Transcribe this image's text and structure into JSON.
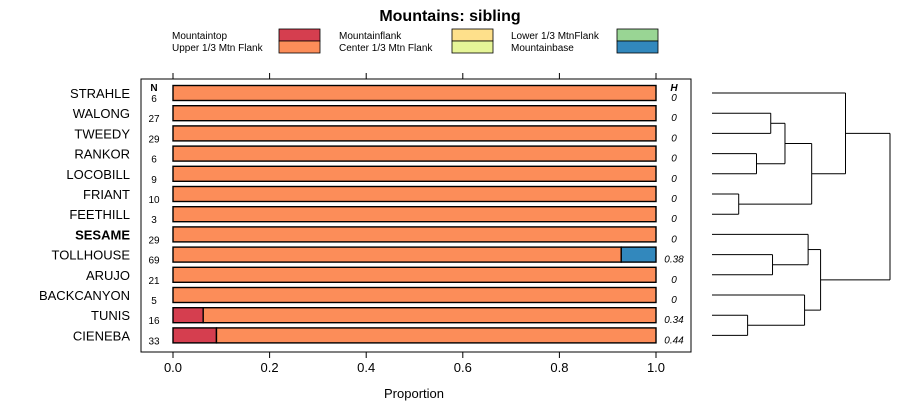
{
  "chart_data": {
    "type": "bar",
    "orientation": "horizontal",
    "stacked": true,
    "title": "Mountains: sibling",
    "xlabel": "Proportion",
    "ylabel": "",
    "xlim": [
      0,
      1
    ],
    "xticks": [
      "0.0",
      "0.2",
      "0.4",
      "0.6",
      "0.8",
      "1.0"
    ],
    "n_header": "N",
    "h_header": "H",
    "highlight_category": "SESAME",
    "legend": [
      {
        "name": "Mountaintop",
        "color": "#d53e4f"
      },
      {
        "name": "Mountainflank",
        "color": "#fee08b"
      },
      {
        "name": "Lower 1/3 MtnFlank",
        "color": "#99d594"
      },
      {
        "name": "Upper 1/3 Mtn Flank",
        "color": "#fc8d59"
      },
      {
        "name": "Center 1/3 Mtn Flank",
        "color": "#e6f598"
      },
      {
        "name": "Mountainbase",
        "color": "#3288bd"
      }
    ],
    "rows": [
      {
        "name": "STRAHLE",
        "n": "6",
        "h": "0",
        "parts": [
          0,
          0,
          0,
          1,
          0,
          0
        ]
      },
      {
        "name": "WALONG",
        "n": "27",
        "h": "0",
        "parts": [
          0,
          0,
          0,
          1,
          0,
          0
        ]
      },
      {
        "name": "TWEEDY",
        "n": "29",
        "h": "0",
        "parts": [
          0,
          0,
          0,
          1,
          0,
          0
        ]
      },
      {
        "name": "RANKOR",
        "n": "6",
        "h": "0",
        "parts": [
          0,
          0,
          0,
          1,
          0,
          0
        ]
      },
      {
        "name": "LOCOBILL",
        "n": "9",
        "h": "0",
        "parts": [
          0,
          0,
          0,
          1,
          0,
          0
        ]
      },
      {
        "name": "FRIANT",
        "n": "10",
        "h": "0",
        "parts": [
          0,
          0,
          0,
          1,
          0,
          0
        ]
      },
      {
        "name": "FEETHILL",
        "n": "3",
        "h": "0",
        "parts": [
          0,
          0,
          0,
          1,
          0,
          0
        ]
      },
      {
        "name": "SESAME",
        "n": "29",
        "h": "0",
        "parts": [
          0,
          0,
          0,
          1,
          0,
          0
        ]
      },
      {
        "name": "TOLLHOUSE",
        "n": "69",
        "h": "0.38",
        "parts": [
          0,
          0,
          0,
          0.928,
          0,
          0.072
        ]
      },
      {
        "name": "ARUJO",
        "n": "21",
        "h": "0",
        "parts": [
          0,
          0,
          0,
          1,
          0,
          0
        ]
      },
      {
        "name": "BACKCANYON",
        "n": "5",
        "h": "0",
        "parts": [
          0,
          0,
          0,
          1,
          0,
          0
        ]
      },
      {
        "name": "TUNIS",
        "n": "16",
        "h": "0.34",
        "parts": [
          0.0625,
          0,
          0,
          0.9375,
          0,
          0
        ]
      },
      {
        "name": "CIENEBA",
        "n": "33",
        "h": "0.44",
        "parts": [
          0.09,
          0,
          0,
          0.91,
          0,
          0
        ]
      }
    ],
    "dendrogram": {
      "type": "hierarchical-clustering",
      "leaves": [
        "STRAHLE",
        "WALONG",
        "TWEEDY",
        "RANKOR",
        "LOCOBILL",
        "FRIANT",
        "FEETHILL",
        "SESAME",
        "TOLLHOUSE",
        "ARUJO",
        "BACKCANYON",
        "TUNIS",
        "CIENEBA"
      ],
      "merges": [
        {
          "a": 1,
          "b": 2,
          "height": 0.33
        },
        {
          "a": 3,
          "b": 4,
          "height": 0.25
        },
        {
          "a": "m0",
          "b": "m1",
          "height": 0.41
        },
        {
          "a": 5,
          "b": 6,
          "height": 0.15
        },
        {
          "a": "m2",
          "b": "m3",
          "height": 0.56
        },
        {
          "a": 0,
          "b": "m4",
          "height": 0.75
        },
        {
          "a": 8,
          "b": 9,
          "height": 0.34
        },
        {
          "a": 7,
          "b": "m6",
          "height": 0.54
        },
        {
          "a": 11,
          "b": 12,
          "height": 0.2
        },
        {
          "a": 10,
          "b": "m8",
          "height": 0.52
        },
        {
          "a": "m7",
          "b": "m9",
          "height": 0.61
        },
        {
          "a": "m5",
          "b": "m10",
          "height": 1.0
        }
      ]
    }
  }
}
